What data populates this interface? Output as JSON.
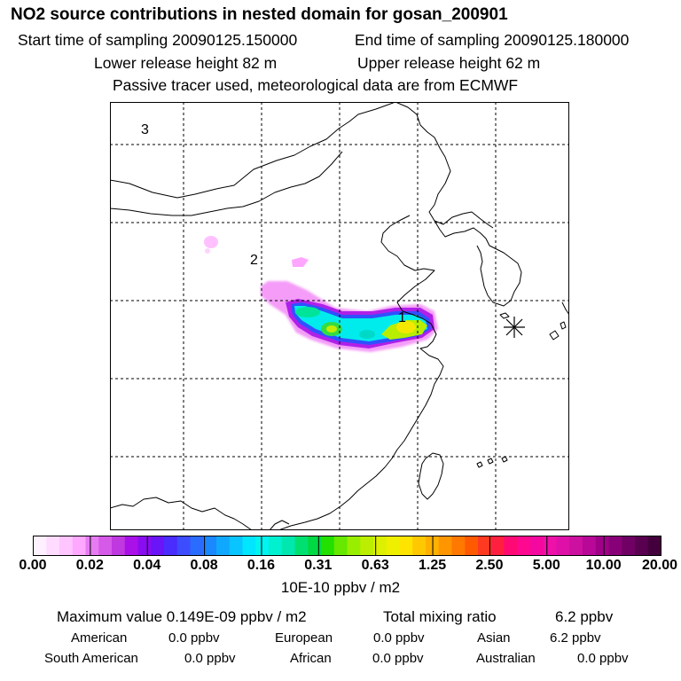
{
  "header": {
    "title": "NO2 source contributions in nested domain for gosan_200901",
    "start_time": "Start time of sampling 20090125.150000",
    "end_time": "End time of sampling 20090125.180000",
    "lower_release": "Lower release height   82 m",
    "upper_release": "Upper release height   62 m",
    "note": "Passive tracer used, meteorological data are from ECMWF"
  },
  "map": {
    "labels": [
      "1",
      "2",
      "3"
    ],
    "receptor_marker": "asterisk-icon",
    "colors": {
      "border": "#000000",
      "grid": "#000000"
    }
  },
  "colorbar": {
    "ticks": [
      "0.00",
      "0.02",
      "0.04",
      "0.08",
      "0.16",
      "0.31",
      "0.63",
      "1.25",
      "2.50",
      "5.00",
      "10.00",
      "20.00"
    ],
    "unit": "10E-10 ppbv / m2",
    "colors": [
      "#fff0ff",
      "#ffdcff",
      "#ffc5ff",
      "#ffa8ff",
      "#e67cf2",
      "#d55ae8",
      "#c038e0",
      "#aa10e8",
      "#8a0cf0",
      "#6a14f8",
      "#4a2cff",
      "#3c4cff",
      "#2a6cff",
      "#1a88ff",
      "#10a8ff",
      "#08c4ff",
      "#00e6ff",
      "#00f4f0",
      "#00f0d0",
      "#00e8b0",
      "#00e070",
      "#00d844",
      "#22e000",
      "#66e800",
      "#99ee00",
      "#bbee00",
      "#ddf000",
      "#eef000",
      "#ffe400",
      "#ffc800",
      "#ffb000",
      "#ff9600",
      "#ff7800",
      "#ff5a00",
      "#ff3a20",
      "#ff2040",
      "#ff0a74",
      "#ff0890",
      "#f408a0",
      "#ee10a8",
      "#de10a8",
      "#cc10a0",
      "#b80898",
      "#a00088",
      "#880078",
      "#700064",
      "#5a0050",
      "#44003c"
    ]
  },
  "summary": {
    "max_value": "Maximum value  0.149E-09 ppbv / m2",
    "total_label": "Total mixing ratio",
    "total_value": "6.2 ppbv",
    "rows": [
      [
        {
          "name": "American",
          "value": "0.0 ppbv"
        },
        {
          "name": "European",
          "value": "0.0 ppbv"
        },
        {
          "name": "Asian",
          "value": "6.2 ppbv"
        }
      ],
      [
        {
          "name": "South American",
          "value": "0.0 ppbv"
        },
        {
          "name": "African",
          "value": "0.0 ppbv"
        },
        {
          "name": "Australian",
          "value": "0.0 ppbv"
        }
      ]
    ]
  }
}
